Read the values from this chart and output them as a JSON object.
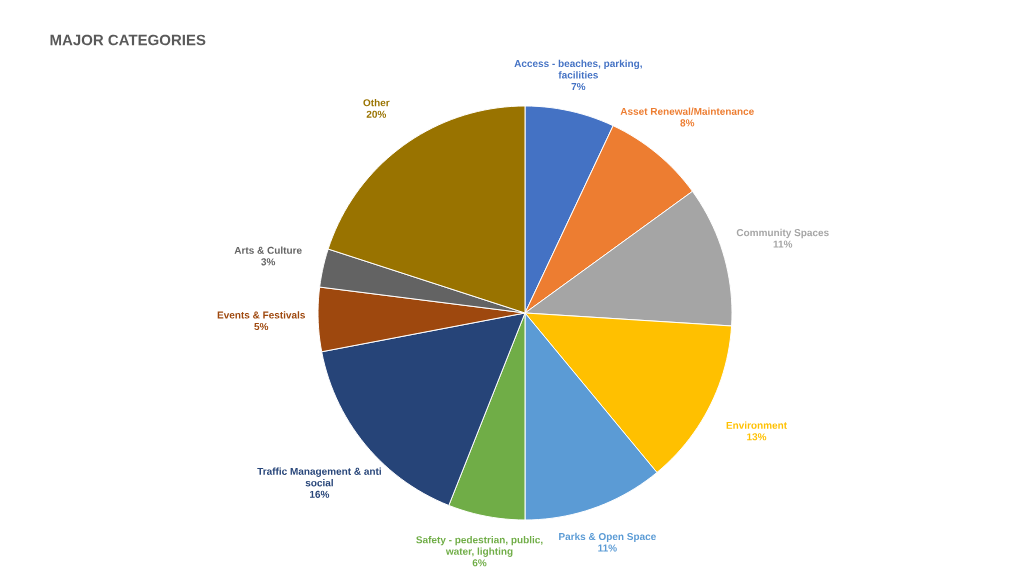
{
  "chart_data": {
    "type": "pie",
    "title": "MAJOR CATEGORIES",
    "categories": [
      "Access - beaches, parking, facilities",
      "Asset Renewal/Maintenance",
      "Community Spaces",
      "Environment",
      "Parks & Open Space",
      "Safety - pedestrian, public, water, lighting",
      "Traffic Management & anti social",
      "Events & Festivals",
      "Arts & Culture",
      "Other"
    ],
    "values": [
      7,
      8,
      11,
      13,
      11,
      6,
      16,
      5,
      3,
      20
    ],
    "value_labels": [
      "7%",
      "8%",
      "11%",
      "13%",
      "11%",
      "6%",
      "16%",
      "5%",
      "3%",
      "20%"
    ],
    "colors": [
      "#4472c4",
      "#ed7d31",
      "#a5a5a5",
      "#ffc000",
      "#5b9bd5",
      "#70ad47",
      "#264478",
      "#9e480e",
      "#636363",
      "#997300"
    ]
  }
}
